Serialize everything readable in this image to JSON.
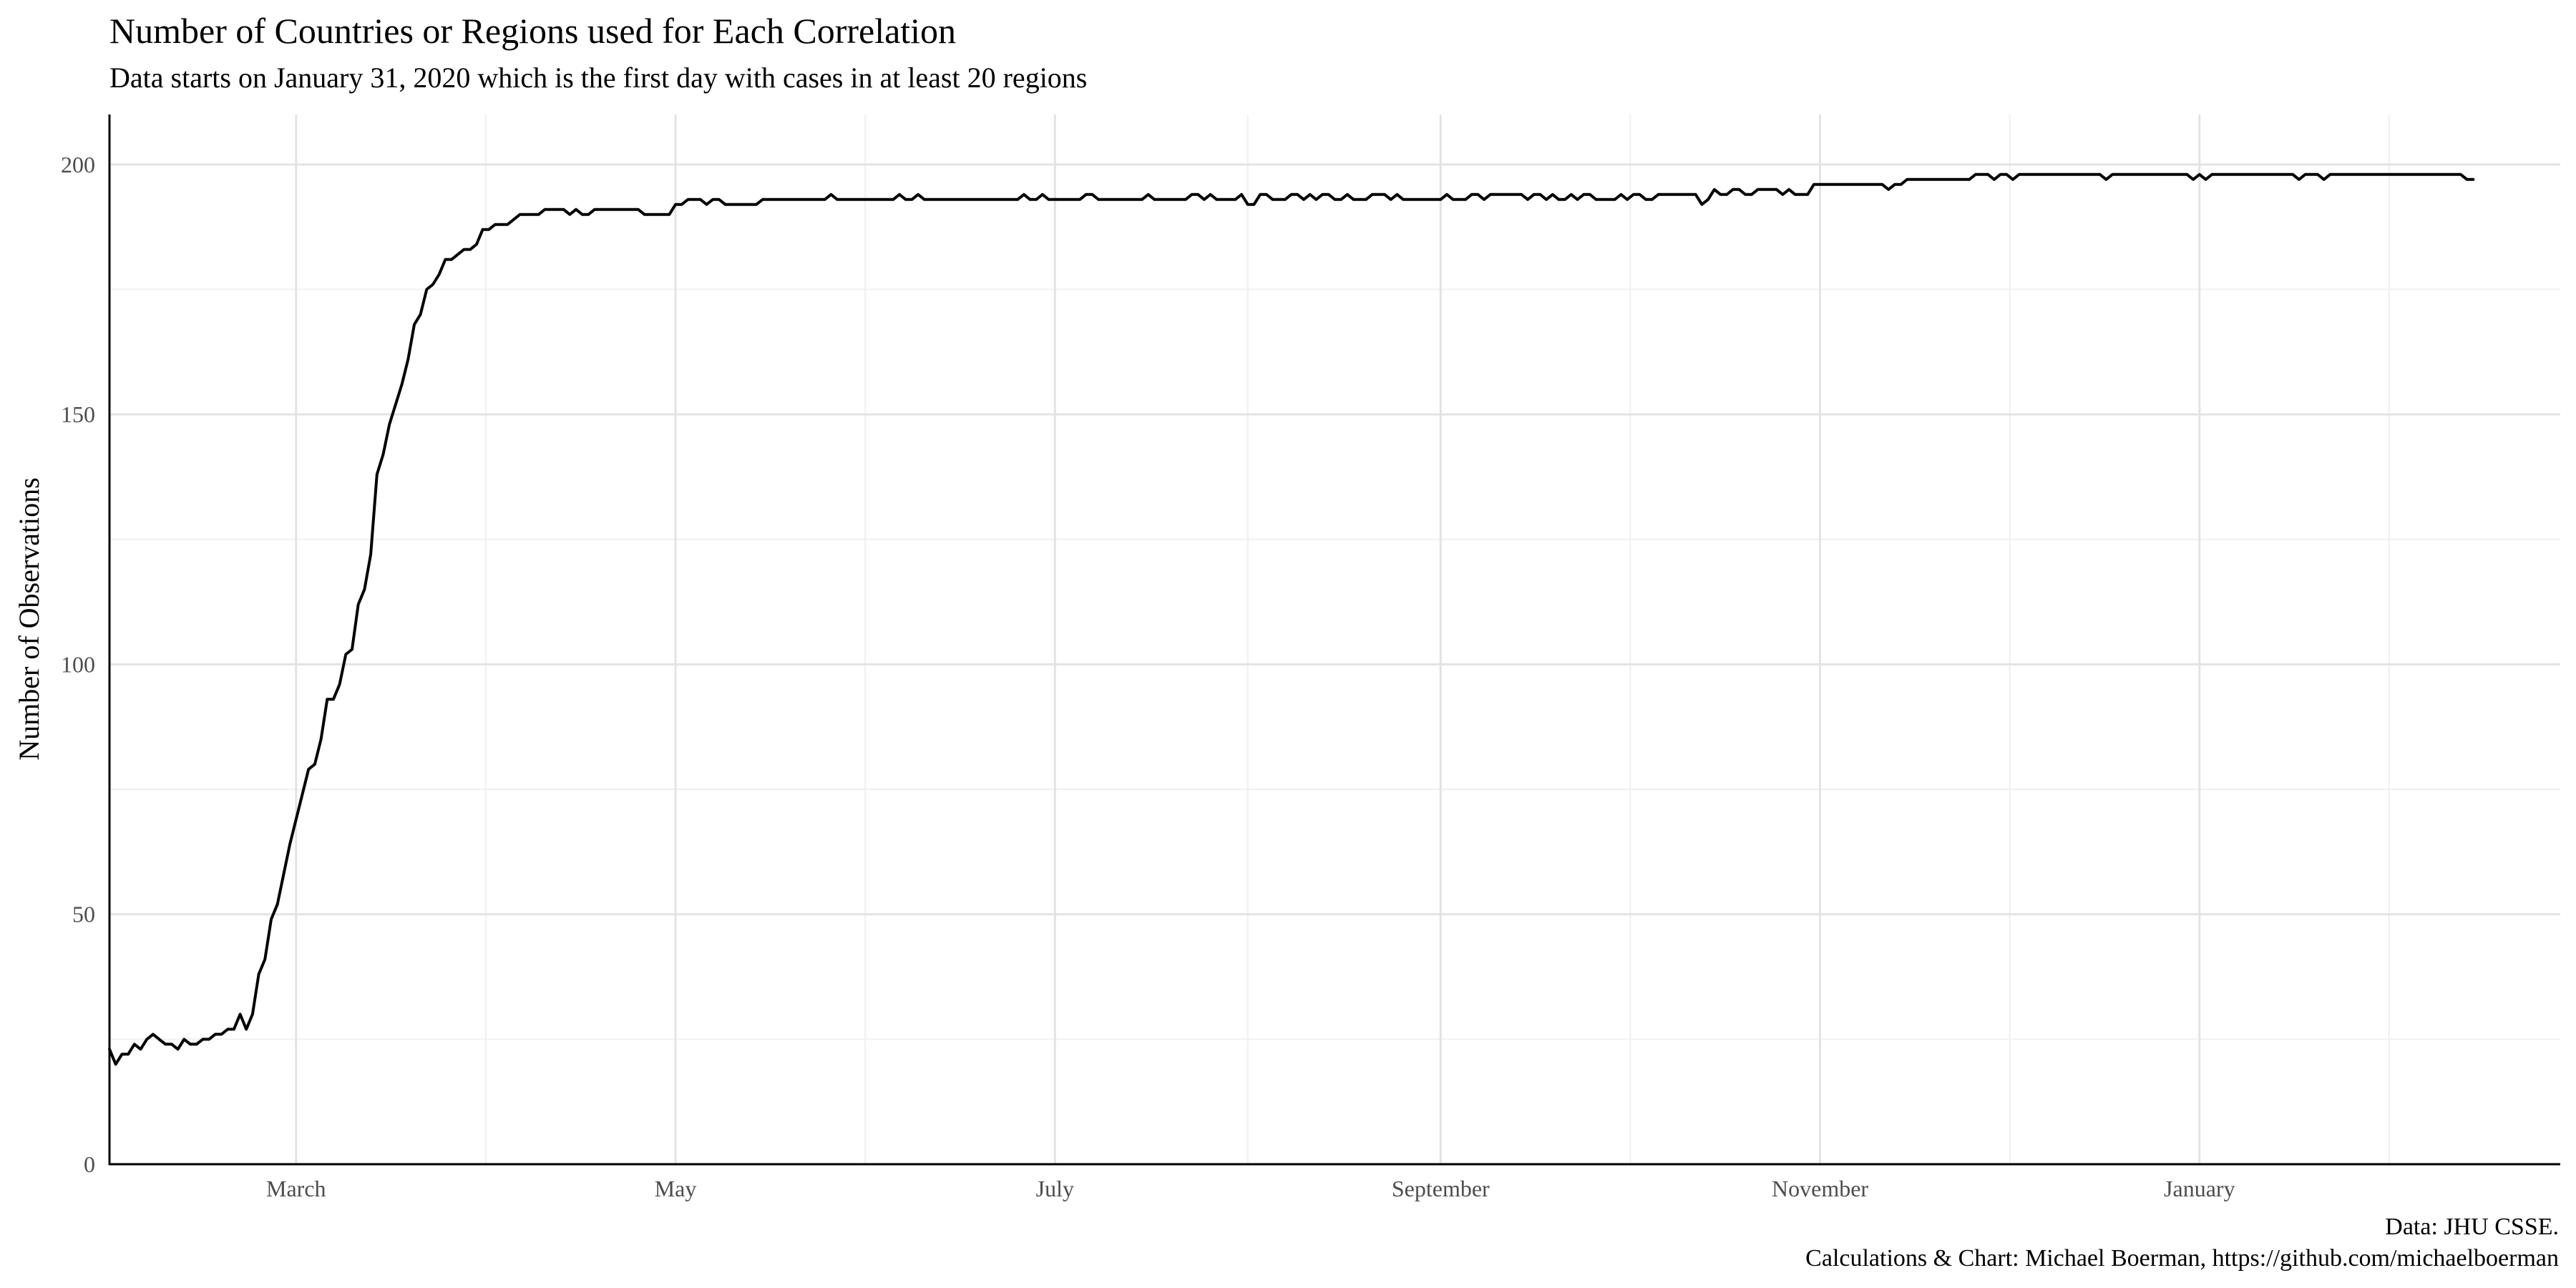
{
  "chart_data": {
    "type": "line",
    "title": "Number of Countries or Regions used for Each Correlation",
    "subtitle": "Data starts on January 31, 2020 which is the first day with cases in at least 20 regions",
    "xlabel": "",
    "ylabel": "Number of Observations",
    "caption_line1": "Data: JHU CSSE.",
    "caption_line2": "Calculations & Chart: Michael Boerman, https://github.com/michaelboerman",
    "xlim": [
      "2020-01-31",
      "2021-02-28"
    ],
    "ylim": [
      0,
      210
    ],
    "y_ticks": [
      0,
      50,
      100,
      150,
      200
    ],
    "x_ticks": [
      {
        "label": "March",
        "date": "2020-03-01"
      },
      {
        "label": "May",
        "date": "2020-05-01"
      },
      {
        "label": "July",
        "date": "2020-07-01"
      },
      {
        "label": "September",
        "date": "2020-09-01"
      },
      {
        "label": "November",
        "date": "2020-11-01"
      },
      {
        "label": "January",
        "date": "2021-01-01"
      }
    ],
    "grid": true,
    "line_color": "#000000",
    "series": [
      {
        "points": [
          [
            "2020-01-31",
            23
          ],
          [
            "2020-02-01",
            20
          ],
          [
            "2020-02-02",
            22
          ],
          [
            "2020-02-03",
            22
          ],
          [
            "2020-02-04",
            24
          ],
          [
            "2020-02-05",
            23
          ],
          [
            "2020-02-06",
            25
          ],
          [
            "2020-02-07",
            26
          ],
          [
            "2020-02-08",
            25
          ],
          [
            "2020-02-09",
            24
          ],
          [
            "2020-02-10",
            24
          ],
          [
            "2020-02-11",
            23
          ],
          [
            "2020-02-12",
            25
          ],
          [
            "2020-02-13",
            24
          ],
          [
            "2020-02-14",
            24
          ],
          [
            "2020-02-15",
            25
          ],
          [
            "2020-02-16",
            25
          ],
          [
            "2020-02-17",
            26
          ],
          [
            "2020-02-18",
            26
          ],
          [
            "2020-02-19",
            27
          ],
          [
            "2020-02-20",
            27
          ],
          [
            "2020-02-21",
            30
          ],
          [
            "2020-02-22",
            27
          ],
          [
            "2020-02-23",
            30
          ],
          [
            "2020-02-24",
            38
          ],
          [
            "2020-02-25",
            41
          ],
          [
            "2020-02-26",
            49
          ],
          [
            "2020-02-27",
            52
          ],
          [
            "2020-02-28",
            58
          ],
          [
            "2020-02-29",
            64
          ],
          [
            "2020-03-01",
            69
          ],
          [
            "2020-03-02",
            74
          ],
          [
            "2020-03-03",
            79
          ],
          [
            "2020-03-04",
            80
          ],
          [
            "2020-03-05",
            85
          ],
          [
            "2020-03-06",
            93
          ],
          [
            "2020-03-07",
            93
          ],
          [
            "2020-03-08",
            96
          ],
          [
            "2020-03-09",
            102
          ],
          [
            "2020-03-10",
            103
          ],
          [
            "2020-03-11",
            112
          ],
          [
            "2020-03-12",
            115
          ],
          [
            "2020-03-13",
            122
          ],
          [
            "2020-03-14",
            138
          ],
          [
            "2020-03-15",
            142
          ],
          [
            "2020-03-16",
            148
          ],
          [
            "2020-03-17",
            152
          ],
          [
            "2020-03-18",
            156
          ],
          [
            "2020-03-19",
            161
          ],
          [
            "2020-03-20",
            168
          ],
          [
            "2020-03-21",
            170
          ],
          [
            "2020-03-22",
            175
          ],
          [
            "2020-03-23",
            176
          ],
          [
            "2020-03-24",
            178
          ],
          [
            "2020-03-25",
            181
          ],
          [
            "2020-03-26",
            181
          ],
          [
            "2020-03-27",
            182
          ],
          [
            "2020-03-28",
            183
          ],
          [
            "2020-03-29",
            183
          ],
          [
            "2020-03-30",
            184
          ],
          [
            "2020-03-31",
            187
          ],
          [
            "2020-04-01",
            187
          ],
          [
            "2020-04-02",
            188
          ],
          [
            "2020-04-03",
            188
          ],
          [
            "2020-04-04",
            188
          ],
          [
            "2020-04-05",
            189
          ],
          [
            "2020-04-06",
            190
          ],
          [
            "2020-04-07",
            190
          ],
          [
            "2020-04-08",
            190
          ],
          [
            "2020-04-09",
            190
          ],
          [
            "2020-04-10",
            191
          ],
          [
            "2020-04-11",
            191
          ],
          [
            "2020-04-12",
            191
          ],
          [
            "2020-04-13",
            191
          ],
          [
            "2020-04-14",
            190
          ],
          [
            "2020-04-15",
            191
          ],
          [
            "2020-04-16",
            190
          ],
          [
            "2020-04-17",
            190
          ],
          [
            "2020-04-18",
            191
          ],
          [
            "2020-04-19",
            191
          ],
          [
            "2020-04-20",
            191
          ],
          [
            "2020-04-21",
            191
          ],
          [
            "2020-04-22",
            191
          ],
          [
            "2020-04-23",
            191
          ],
          [
            "2020-04-24",
            191
          ],
          [
            "2020-04-25",
            191
          ],
          [
            "2020-04-26",
            190
          ],
          [
            "2020-04-27",
            190
          ],
          [
            "2020-04-28",
            190
          ],
          [
            "2020-04-29",
            190
          ],
          [
            "2020-04-30",
            190
          ],
          [
            "2020-05-01",
            192
          ],
          [
            "2020-05-02",
            192
          ],
          [
            "2020-05-03",
            193
          ],
          [
            "2020-05-04",
            193
          ],
          [
            "2020-05-05",
            193
          ],
          [
            "2020-05-06",
            192
          ],
          [
            "2020-05-07",
            193
          ],
          [
            "2020-05-08",
            193
          ],
          [
            "2020-05-09",
            192
          ],
          [
            "2020-05-10",
            192
          ],
          [
            "2020-05-11",
            192
          ],
          [
            "2020-05-12",
            192
          ],
          [
            "2020-05-13",
            192
          ],
          [
            "2020-05-14",
            192
          ],
          [
            "2020-05-15",
            193
          ],
          [
            "2020-05-20",
            193
          ],
          [
            "2020-05-25",
            193
          ],
          [
            "2020-05-26",
            194
          ],
          [
            "2020-05-27",
            193
          ],
          [
            "2020-06-01",
            193
          ],
          [
            "2020-06-05",
            193
          ],
          [
            "2020-06-06",
            194
          ],
          [
            "2020-06-07",
            193
          ],
          [
            "2020-06-08",
            193
          ],
          [
            "2020-06-09",
            194
          ],
          [
            "2020-06-10",
            193
          ],
          [
            "2020-06-20",
            193
          ],
          [
            "2020-06-25",
            193
          ],
          [
            "2020-06-26",
            194
          ],
          [
            "2020-06-27",
            193
          ],
          [
            "2020-06-28",
            193
          ],
          [
            "2020-06-29",
            194
          ],
          [
            "2020-06-30",
            193
          ],
          [
            "2020-07-01",
            193
          ],
          [
            "2020-07-05",
            193
          ],
          [
            "2020-07-06",
            194
          ],
          [
            "2020-07-07",
            194
          ],
          [
            "2020-07-08",
            193
          ],
          [
            "2020-07-15",
            193
          ],
          [
            "2020-07-16",
            194
          ],
          [
            "2020-07-17",
            193
          ],
          [
            "2020-07-22",
            193
          ],
          [
            "2020-07-23",
            194
          ],
          [
            "2020-07-24",
            194
          ],
          [
            "2020-07-25",
            193
          ],
          [
            "2020-07-26",
            194
          ],
          [
            "2020-07-27",
            193
          ],
          [
            "2020-07-28",
            193
          ],
          [
            "2020-07-30",
            193
          ],
          [
            "2020-07-31",
            194
          ],
          [
            "2020-08-01",
            192
          ],
          [
            "2020-08-02",
            192
          ],
          [
            "2020-08-03",
            194
          ],
          [
            "2020-08-04",
            194
          ],
          [
            "2020-08-05",
            193
          ],
          [
            "2020-08-06",
            193
          ],
          [
            "2020-08-07",
            193
          ],
          [
            "2020-08-08",
            194
          ],
          [
            "2020-08-09",
            194
          ],
          [
            "2020-08-10",
            193
          ],
          [
            "2020-08-11",
            194
          ],
          [
            "2020-08-12",
            193
          ],
          [
            "2020-08-13",
            194
          ],
          [
            "2020-08-14",
            194
          ],
          [
            "2020-08-15",
            193
          ],
          [
            "2020-08-16",
            193
          ],
          [
            "2020-08-17",
            194
          ],
          [
            "2020-08-18",
            193
          ],
          [
            "2020-08-19",
            193
          ],
          [
            "2020-08-20",
            193
          ],
          [
            "2020-08-21",
            194
          ],
          [
            "2020-08-22",
            194
          ],
          [
            "2020-08-23",
            194
          ],
          [
            "2020-08-24",
            193
          ],
          [
            "2020-08-25",
            194
          ],
          [
            "2020-08-26",
            193
          ],
          [
            "2020-08-27",
            193
          ],
          [
            "2020-08-28",
            193
          ],
          [
            "2020-08-29",
            193
          ],
          [
            "2020-08-30",
            193
          ],
          [
            "2020-08-31",
            193
          ],
          [
            "2020-09-01",
            193
          ],
          [
            "2020-09-02",
            194
          ],
          [
            "2020-09-03",
            193
          ],
          [
            "2020-09-04",
            193
          ],
          [
            "2020-09-05",
            193
          ],
          [
            "2020-09-06",
            194
          ],
          [
            "2020-09-07",
            194
          ],
          [
            "2020-09-08",
            193
          ],
          [
            "2020-09-09",
            194
          ],
          [
            "2020-09-10",
            194
          ],
          [
            "2020-09-11",
            194
          ],
          [
            "2020-09-12",
            194
          ],
          [
            "2020-09-13",
            194
          ],
          [
            "2020-09-14",
            194
          ],
          [
            "2020-09-15",
            193
          ],
          [
            "2020-09-16",
            194
          ],
          [
            "2020-09-17",
            194
          ],
          [
            "2020-09-18",
            193
          ],
          [
            "2020-09-19",
            194
          ],
          [
            "2020-09-20",
            193
          ],
          [
            "2020-09-21",
            193
          ],
          [
            "2020-09-22",
            194
          ],
          [
            "2020-09-23",
            193
          ],
          [
            "2020-09-24",
            194
          ],
          [
            "2020-09-25",
            194
          ],
          [
            "2020-09-26",
            193
          ],
          [
            "2020-09-27",
            193
          ],
          [
            "2020-09-28",
            193
          ],
          [
            "2020-09-29",
            193
          ],
          [
            "2020-09-30",
            194
          ],
          [
            "2020-10-01",
            193
          ],
          [
            "2020-10-02",
            194
          ],
          [
            "2020-10-03",
            194
          ],
          [
            "2020-10-04",
            193
          ],
          [
            "2020-10-05",
            193
          ],
          [
            "2020-10-06",
            194
          ],
          [
            "2020-10-07",
            194
          ],
          [
            "2020-10-08",
            194
          ],
          [
            "2020-10-09",
            194
          ],
          [
            "2020-10-10",
            194
          ],
          [
            "2020-10-11",
            194
          ],
          [
            "2020-10-12",
            194
          ],
          [
            "2020-10-13",
            192
          ],
          [
            "2020-10-14",
            193
          ],
          [
            "2020-10-15",
            195
          ],
          [
            "2020-10-16",
            194
          ],
          [
            "2020-10-17",
            194
          ],
          [
            "2020-10-18",
            195
          ],
          [
            "2020-10-19",
            195
          ],
          [
            "2020-10-20",
            194
          ],
          [
            "2020-10-21",
            194
          ],
          [
            "2020-10-22",
            195
          ],
          [
            "2020-10-23",
            195
          ],
          [
            "2020-10-24",
            195
          ],
          [
            "2020-10-25",
            195
          ],
          [
            "2020-10-26",
            194
          ],
          [
            "2020-10-27",
            195
          ],
          [
            "2020-10-28",
            194
          ],
          [
            "2020-10-29",
            194
          ],
          [
            "2020-10-30",
            194
          ],
          [
            "2020-10-31",
            196
          ],
          [
            "2020-11-01",
            196
          ],
          [
            "2020-11-05",
            196
          ],
          [
            "2020-11-10",
            196
          ],
          [
            "2020-11-11",
            196
          ],
          [
            "2020-11-12",
            195
          ],
          [
            "2020-11-13",
            196
          ],
          [
            "2020-11-14",
            196
          ],
          [
            "2020-11-15",
            197
          ],
          [
            "2020-11-20",
            197
          ],
          [
            "2020-11-25",
            197
          ],
          [
            "2020-11-26",
            198
          ],
          [
            "2020-11-27",
            198
          ],
          [
            "2020-11-28",
            198
          ],
          [
            "2020-11-29",
            197
          ],
          [
            "2020-11-30",
            198
          ],
          [
            "2020-12-01",
            198
          ],
          [
            "2020-12-02",
            197
          ],
          [
            "2020-12-03",
            198
          ],
          [
            "2020-12-10",
            198
          ],
          [
            "2020-12-15",
            198
          ],
          [
            "2020-12-16",
            198
          ],
          [
            "2020-12-17",
            197
          ],
          [
            "2020-12-18",
            198
          ],
          [
            "2020-12-25",
            198
          ],
          [
            "2020-12-30",
            198
          ],
          [
            "2020-12-31",
            197
          ],
          [
            "2021-01-01",
            198
          ],
          [
            "2021-01-02",
            197
          ],
          [
            "2021-01-03",
            198
          ],
          [
            "2021-01-10",
            198
          ],
          [
            "2021-01-15",
            198
          ],
          [
            "2021-01-16",
            198
          ],
          [
            "2021-01-17",
            197
          ],
          [
            "2021-01-18",
            198
          ],
          [
            "2021-01-19",
            198
          ],
          [
            "2021-01-20",
            198
          ],
          [
            "2021-01-21",
            197
          ],
          [
            "2021-01-22",
            198
          ],
          [
            "2021-01-23",
            198
          ],
          [
            "2021-01-30",
            198
          ],
          [
            "2021-02-05",
            198
          ],
          [
            "2021-02-10",
            198
          ],
          [
            "2021-02-12",
            198
          ],
          [
            "2021-02-13",
            197
          ],
          [
            "2021-02-14",
            197
          ]
        ]
      }
    ]
  }
}
